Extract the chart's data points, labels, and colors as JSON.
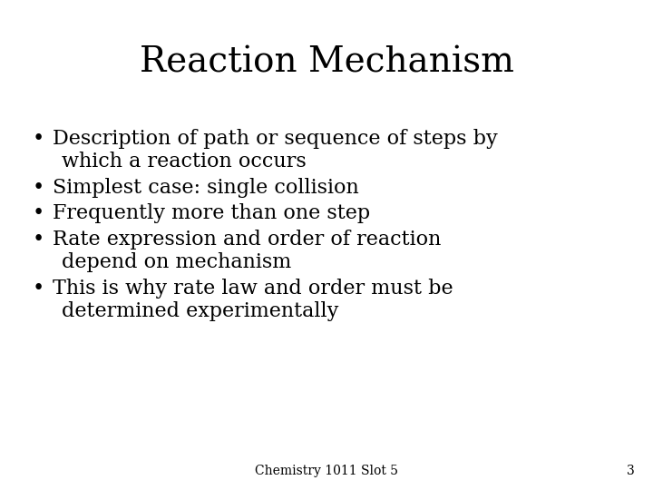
{
  "title": "Reaction Mechanism",
  "title_fontsize": 28,
  "title_font": "DejaVu Serif",
  "bullet_font": "DejaVu Serif",
  "bullet_fontsize": 16,
  "footer_text": "Chemistry 1011 Slot 5",
  "footer_number": "3",
  "footer_fontsize": 10,
  "background_color": "#ffffff",
  "text_color": "#000000",
  "bullets": [
    [
      "Description of path or sequence of steps by",
      "which a reaction occurs"
    ],
    [
      "Simplest case: single collision"
    ],
    [
      "Frequently more than one step"
    ],
    [
      "Rate expression and order of reaction",
      "depend on mechanism"
    ],
    [
      "This is why rate law and order must be",
      "determined experimentally"
    ]
  ]
}
